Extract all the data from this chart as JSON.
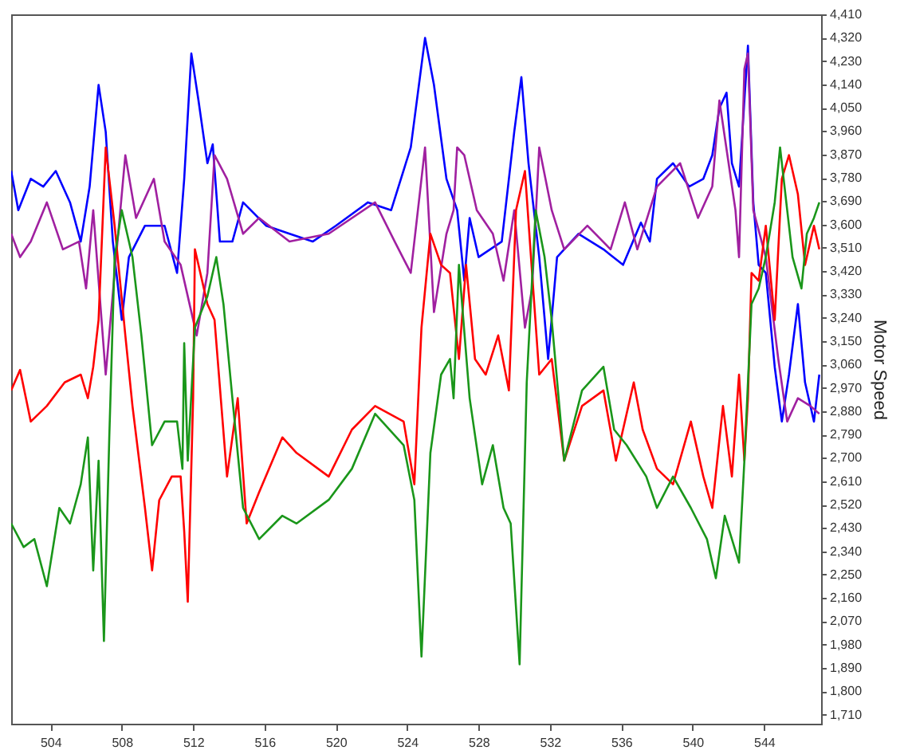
{
  "chart_data": {
    "type": "line",
    "ylabel": "Motor Speed",
    "xlim": [
      501.8,
      547.2
    ],
    "ylim": [
      1675,
      4410
    ],
    "xticks": [
      504,
      508,
      512,
      516,
      520,
      524,
      528,
      532,
      536,
      540,
      544
    ],
    "yticks": [
      {
        "value": 1710,
        "label": "1,710"
      },
      {
        "value": 1800,
        "label": "1,800"
      },
      {
        "value": 1890,
        "label": "1,890"
      },
      {
        "value": 1980,
        "label": "1,980"
      },
      {
        "value": 2070,
        "label": "2,070"
      },
      {
        "value": 2160,
        "label": "2,160"
      },
      {
        "value": 2250,
        "label": "2,250"
      },
      {
        "value": 2340,
        "label": "2,340"
      },
      {
        "value": 2430,
        "label": "2,430"
      },
      {
        "value": 2520,
        "label": "2,520"
      },
      {
        "value": 2610,
        "label": "2,610"
      },
      {
        "value": 2700,
        "label": "2,700"
      },
      {
        "value": 2790,
        "label": "2,790"
      },
      {
        "value": 2880,
        "label": "2,880"
      },
      {
        "value": 2970,
        "label": "2,970"
      },
      {
        "value": 3060,
        "label": "3,060"
      },
      {
        "value": 3150,
        "label": "3,150"
      },
      {
        "value": 3240,
        "label": "3,240"
      },
      {
        "value": 3330,
        "label": "3,330"
      },
      {
        "value": 3420,
        "label": "3,420"
      },
      {
        "value": 3510,
        "label": "3,510"
      },
      {
        "value": 3600,
        "label": "3,600"
      },
      {
        "value": 3690,
        "label": "3,690"
      },
      {
        "value": 3780,
        "label": "3,780"
      },
      {
        "value": 3870,
        "label": "3,870"
      },
      {
        "value": 3960,
        "label": "3,960"
      },
      {
        "value": 4050,
        "label": "4,050"
      },
      {
        "value": 4140,
        "label": "4,140"
      },
      {
        "value": 4230,
        "label": "4,230"
      },
      {
        "value": 4320,
        "label": "4,320"
      },
      {
        "value": 4410,
        "label": "4,410"
      }
    ],
    "grid": false,
    "series": [
      {
        "color": "#0000ff",
        "x": [
          501.8,
          502.2,
          502.9,
          503.6,
          504.3,
          505.1,
          505.7,
          506.2,
          506.7,
          507.1,
          507.5,
          508.0,
          508.4,
          509.3,
          510.4,
          511.1,
          511.5,
          511.9,
          512.3,
          512.8,
          513.1,
          513.5,
          514.2,
          514.8,
          516.1,
          517.4,
          518.7,
          520.0,
          521.8,
          523.1,
          524.2,
          525.0,
          525.5,
          526.2,
          526.8,
          527.2,
          527.5,
          528.0,
          529.3,
          530.0,
          530.4,
          530.8,
          531.4,
          531.9,
          532.4,
          533.6,
          535.0,
          536.1,
          537.1,
          537.6,
          538.0,
          538.9,
          539.8,
          540.6,
          541.1,
          541.5,
          541.9,
          542.2,
          542.6,
          542.9,
          543.1,
          543.4,
          543.7,
          544.1,
          544.6,
          545.0,
          545.4,
          545.9,
          546.3,
          546.8,
          547.1
        ],
        "values": [
          3806,
          3655,
          3776,
          3746,
          3806,
          3685,
          3534,
          3746,
          4138,
          3957,
          3534,
          3232,
          3474,
          3595,
          3595,
          3413,
          3776,
          4259,
          4078,
          3836,
          3909,
          3534,
          3534,
          3685,
          3595,
          3564,
          3534,
          3595,
          3685,
          3655,
          3897,
          4319,
          4138,
          3776,
          3655,
          3383,
          3625,
          3474,
          3534,
          3957,
          4168,
          3836,
          3474,
          3081,
          3474,
          3564,
          3504,
          3444,
          3607,
          3534,
          3776,
          3836,
          3746,
          3776,
          3867,
          4048,
          4108,
          3836,
          3746,
          4078,
          4289,
          3685,
          3444,
          3413,
          3051,
          2840,
          3021,
          3293,
          2991,
          2840,
          3021
        ]
      },
      {
        "color": "#a020a0",
        "x": [
          501.8,
          502.3,
          502.9,
          503.8,
          504.7,
          505.6,
          506.0,
          506.4,
          507.1,
          507.6,
          508.2,
          508.8,
          509.8,
          510.4,
          511.3,
          512.2,
          512.8,
          513.2,
          513.9,
          514.8,
          515.7,
          517.4,
          519.6,
          522.2,
          523.3,
          524.2,
          525.0,
          525.5,
          526.2,
          526.6,
          526.8,
          527.2,
          527.9,
          528.8,
          529.4,
          530.0,
          530.6,
          531.0,
          531.4,
          532.1,
          532.8,
          534.1,
          535.4,
          536.2,
          536.9,
          538.0,
          539.3,
          540.3,
          541.1,
          541.5,
          542.4,
          542.6,
          542.9,
          543.1,
          543.4,
          544.1,
          544.8,
          545.3,
          545.9,
          546.6,
          547.1
        ],
        "values": [
          3564,
          3474,
          3534,
          3685,
          3504,
          3534,
          3353,
          3655,
          3021,
          3413,
          3867,
          3625,
          3776,
          3534,
          3444,
          3172,
          3413,
          3867,
          3776,
          3564,
          3625,
          3534,
          3564,
          3685,
          3534,
          3413,
          3897,
          3262,
          3564,
          3655,
          3897,
          3867,
          3655,
          3564,
          3383,
          3655,
          3202,
          3353,
          3897,
          3655,
          3504,
          3595,
          3504,
          3685,
          3504,
          3746,
          3836,
          3625,
          3746,
          4078,
          3655,
          3474,
          4199,
          4259,
          3655,
          3474,
          3081,
          2840,
          2930,
          2900,
          2870
        ]
      },
      {
        "color": "#ff0000",
        "x": [
          501.8,
          502.3,
          502.9,
          503.8,
          504.8,
          505.7,
          506.1,
          506.4,
          506.7,
          507.1,
          507.6,
          508.2,
          508.6,
          509.3,
          509.7,
          510.1,
          510.8,
          511.3,
          511.5,
          511.7,
          512.0,
          512.1,
          512.8,
          513.2,
          513.9,
          514.5,
          515.0,
          515.7,
          517.0,
          517.8,
          519.6,
          520.9,
          522.2,
          523.8,
          524.4,
          524.8,
          525.3,
          525.9,
          526.4,
          526.9,
          527.3,
          527.8,
          528.4,
          529.1,
          529.7,
          530.1,
          530.6,
          531.0,
          531.4,
          532.1,
          532.8,
          533.8,
          535.0,
          535.7,
          536.7,
          537.2,
          538.0,
          538.9,
          539.9,
          540.6,
          541.1,
          541.7,
          542.2,
          542.6,
          542.9,
          543.1,
          543.3,
          543.7,
          544.1,
          544.6,
          545.0,
          545.4,
          545.9,
          546.3,
          546.8,
          547.1
        ],
        "values": [
          2960,
          3039,
          2840,
          2900,
          2991,
          3021,
          2930,
          3051,
          3232,
          3897,
          3595,
          3172,
          2900,
          2507,
          2266,
          2537,
          2628,
          2628,
          2417,
          2145,
          2930,
          3504,
          3293,
          3232,
          2628,
          2930,
          2447,
          2568,
          2779,
          2719,
          2628,
          2809,
          2900,
          2840,
          2598,
          3202,
          3564,
          3444,
          3413,
          3081,
          3444,
          3081,
          3021,
          3172,
          2960,
          3655,
          3806,
          3413,
          3021,
          3081,
          2689,
          2900,
          2960,
          2689,
          2991,
          2809,
          2658,
          2598,
          2840,
          2628,
          2507,
          2900,
          2628,
          3021,
          2689,
          2930,
          3413,
          3383,
          3595,
          3232,
          3776,
          3867,
          3716,
          3444,
          3595,
          3504
        ]
      },
      {
        "color": "#1a961a",
        "x": [
          501.8,
          502.5,
          503.1,
          503.8,
          504.5,
          505.1,
          505.7,
          506.1,
          506.4,
          506.7,
          507.0,
          507.3,
          507.6,
          508.0,
          508.6,
          509.1,
          509.7,
          510.4,
          511.1,
          511.4,
          511.5,
          511.7,
          512.1,
          512.8,
          513.3,
          513.7,
          514.2,
          514.8,
          515.7,
          517.0,
          517.8,
          519.6,
          520.9,
          522.2,
          523.8,
          524.4,
          524.8,
          525.3,
          525.9,
          526.4,
          526.6,
          526.9,
          527.5,
          528.2,
          528.8,
          529.4,
          529.8,
          530.3,
          530.7,
          531.2,
          531.7,
          532.1,
          532.8,
          533.8,
          535.0,
          535.6,
          536.3,
          537.4,
          538.0,
          538.9,
          539.9,
          540.8,
          541.3,
          541.8,
          542.2,
          542.6,
          542.9,
          543.3,
          543.7,
          544.1,
          544.6,
          544.9,
          545.3,
          545.6,
          546.1,
          546.4,
          546.8,
          547.1
        ],
        "values": [
          2447,
          2356,
          2387,
          2205,
          2507,
          2447,
          2598,
          2779,
          2266,
          2689,
          1994,
          2779,
          3474,
          3655,
          3474,
          3172,
          2749,
          2840,
          2840,
          2658,
          3142,
          2689,
          3202,
          3323,
          3474,
          3293,
          2930,
          2507,
          2387,
          2477,
          2447,
          2538,
          2658,
          2870,
          2749,
          2538,
          1934,
          2719,
          3021,
          3081,
          2930,
          3444,
          2930,
          2598,
          2749,
          2507,
          2447,
          1904,
          2991,
          3655,
          3474,
          3232,
          2689,
          2960,
          3051,
          2809,
          2749,
          2628,
          2507,
          2628,
          2507,
          2387,
          2236,
          2477,
          2387,
          2296,
          2689,
          3293,
          3353,
          3474,
          3685,
          3897,
          3655,
          3474,
          3353,
          3564,
          3625,
          3685
        ]
      }
    ]
  }
}
